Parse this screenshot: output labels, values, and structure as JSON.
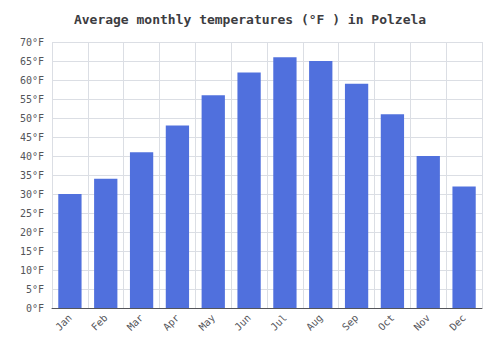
{
  "chart_data": {
    "type": "bar",
    "title": "Average monthly temperatures (°F ) in Polzela",
    "categories": [
      "Jan",
      "Feb",
      "Mar",
      "Apr",
      "May",
      "Jun",
      "Jul",
      "Aug",
      "Sep",
      "Oct",
      "Nov",
      "Dec"
    ],
    "values": [
      30,
      34,
      41,
      48,
      56,
      62,
      66,
      65,
      59,
      51,
      40,
      32
    ],
    "ylim": [
      0,
      70
    ],
    "yticks": [
      {
        "value": 0,
        "label": "0°F"
      },
      {
        "value": 5,
        "label": "5°F"
      },
      {
        "value": 10,
        "label": "10°F"
      },
      {
        "value": 15,
        "label": "15°F"
      },
      {
        "value": 20,
        "label": "20°F"
      },
      {
        "value": 25,
        "label": "25°F"
      },
      {
        "value": 30,
        "label": "30°F"
      },
      {
        "value": 35,
        "label": "35°F"
      },
      {
        "value": 40,
        "label": "40°F"
      },
      {
        "value": 45,
        "label": "45°F"
      },
      {
        "value": 50,
        "label": "50°F"
      },
      {
        "value": 55,
        "label": "55°F"
      },
      {
        "value": 60,
        "label": "60°F"
      },
      {
        "value": 65,
        "label": "65°F"
      },
      {
        "value": 70,
        "label": "70°F"
      }
    ],
    "grid": true
  }
}
